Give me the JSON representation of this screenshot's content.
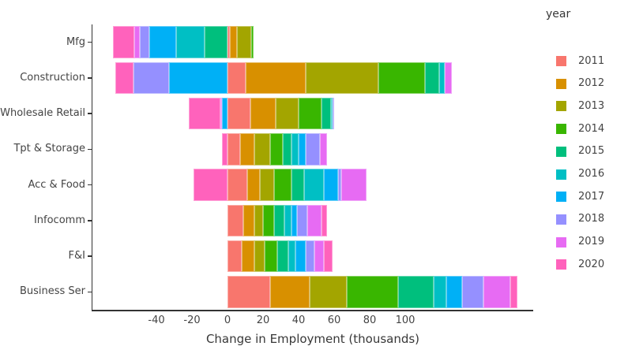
{
  "chart_data": {
    "type": "bar",
    "orientation": "horizontal",
    "stack_mode": "relative-diverging",
    "title": "",
    "xlabel": "Change in Employment (thousands)",
    "ylabel": "",
    "categories": [
      "Mfg",
      "Construction",
      "Wholesale Retail",
      "Tpt & Storage",
      "Acc & Food",
      "Infocomm",
      "F&I",
      "Business Ser"
    ],
    "xlim": [
      -76,
      172
    ],
    "xticks": [
      -40,
      -20,
      0,
      20,
      40,
      60,
      80,
      100
    ],
    "grid": false,
    "legend_title": "year",
    "legend_position": "right",
    "series": [
      {
        "name": "2011",
        "color": "#F8766D",
        "values": [
          1.5,
          10,
          13,
          7,
          11,
          9,
          8,
          24
        ]
      },
      {
        "name": "2012",
        "color": "#D89000",
        "values": [
          4,
          34,
          14,
          8,
          7,
          6,
          7,
          22
        ]
      },
      {
        "name": "2013",
        "color": "#A3A500",
        "values": [
          8,
          41,
          13,
          9,
          8,
          5,
          6,
          21
        ]
      },
      {
        "name": "2014",
        "color": "#39B600",
        "values": [
          1,
          26,
          13,
          7,
          10,
          6,
          7,
          29
        ]
      },
      {
        "name": "2015",
        "color": "#00BF7D",
        "values": [
          -13,
          8,
          5,
          5,
          7,
          6,
          6,
          20
        ]
      },
      {
        "name": "2016",
        "color": "#00BFC4",
        "values": [
          -16,
          3,
          1,
          4,
          11,
          4,
          4,
          7
        ]
      },
      {
        "name": "2017",
        "color": "#00B0F6",
        "values": [
          -15,
          -33,
          -3,
          4,
          8,
          3,
          6,
          9
        ]
      },
      {
        "name": "2018",
        "color": "#9590FF",
        "values": [
          -5.5,
          -20,
          1,
          8,
          2,
          6,
          5,
          12
        ]
      },
      {
        "name": "2019",
        "color": "#E76BF3",
        "values": [
          -3,
          4,
          -1,
          4,
          14,
          8,
          5,
          15
        ]
      },
      {
        "name": "2020",
        "color": "#FF62BC",
        "values": [
          -12,
          -10,
          -18,
          -3,
          -19,
          3,
          5,
          4
        ]
      }
    ]
  }
}
